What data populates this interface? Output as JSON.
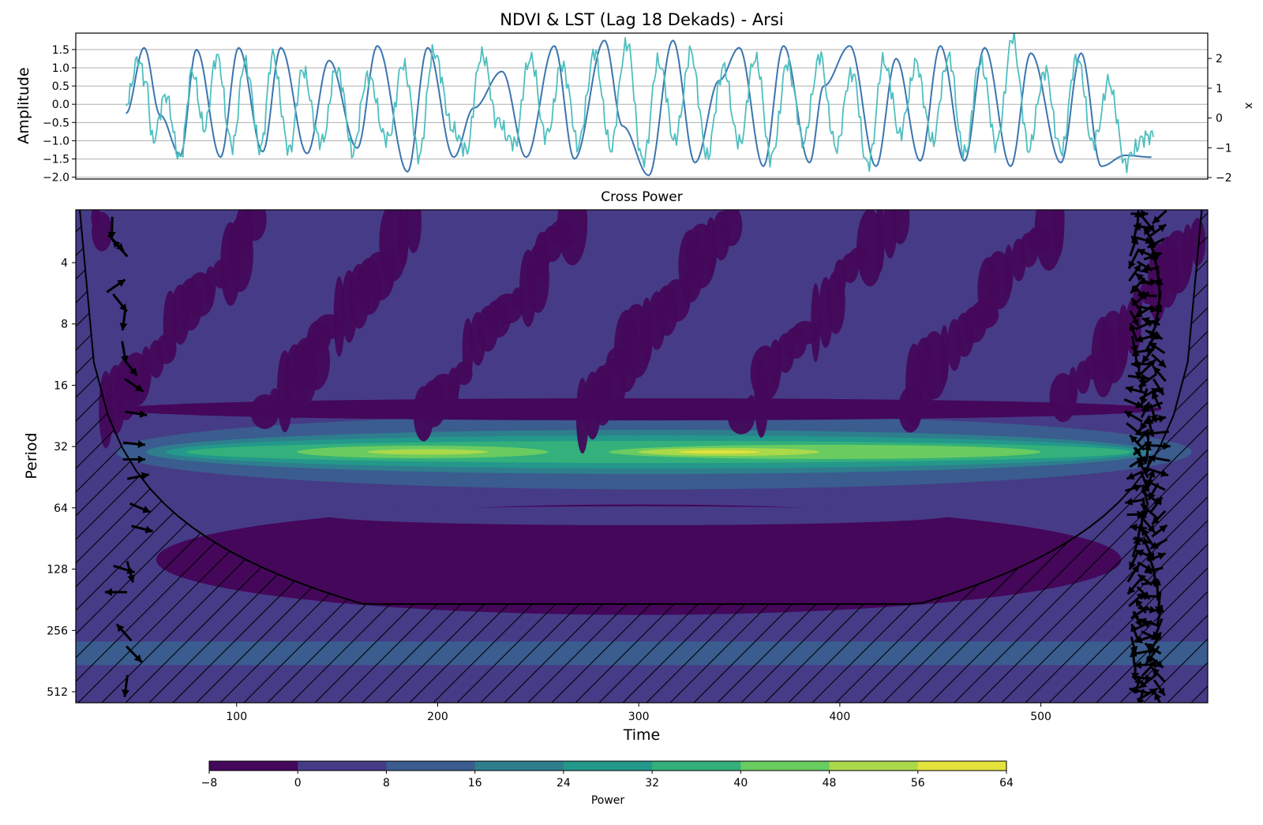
{
  "chart_data": [
    {
      "type": "line",
      "title": "NDVI & LST (Lag 18 Dekads) - Arsi",
      "ylabel": "Amplitude",
      "ylabel_right": "x",
      "ylim": [
        -2.05,
        1.95
      ],
      "ylim_right": [
        -2.05,
        2.85
      ],
      "yticks": [
        "1.5",
        "1.0",
        "0.5",
        "0.0",
        "−0.5",
        "−1.0",
        "−1.5",
        "−2.0"
      ],
      "yticks_right": [
        "2",
        "1",
        "0",
        "−1",
        "−2"
      ],
      "xlim": [
        20,
        583
      ],
      "grid": true,
      "series": [
        {
          "color": "#3b75af",
          "x": [
            45,
            54,
            62,
            72,
            80,
            92,
            101,
            113,
            122,
            135,
            146,
            160,
            170,
            185,
            195,
            208,
            218,
            232,
            244,
            258,
            268,
            283,
            292,
            305,
            317,
            328,
            340,
            350,
            362,
            372,
            385,
            392,
            405,
            418,
            428,
            440,
            450,
            462,
            472,
            485,
            495,
            510,
            520,
            530,
            542,
            555
          ],
          "y": [
            -0.25,
            1.55,
            -0.3,
            -1.4,
            1.5,
            -1.45,
            1.55,
            -1.3,
            1.55,
            -1.35,
            1.2,
            -1.2,
            1.6,
            -1.85,
            1.55,
            -1.45,
            -0.1,
            0.9,
            -1.45,
            1.6,
            -1.5,
            1.75,
            -0.6,
            -1.95,
            1.75,
            -1.6,
            0.65,
            1.55,
            -1.7,
            1.6,
            -1.6,
            0.5,
            1.6,
            -1.7,
            1.25,
            -1.55,
            1.6,
            -1.55,
            1.55,
            -1.7,
            1.4,
            -1.6,
            1.4,
            -1.7,
            -1.4,
            -1.45
          ]
        },
        {
          "color": "#4fbfbf",
          "x": [
            45,
            51,
            55,
            58,
            65,
            72,
            78,
            84,
            90,
            98,
            104,
            112,
            118,
            126,
            133,
            142,
            150,
            158,
            165,
            175,
            183,
            191,
            198,
            207,
            214,
            222,
            230,
            238,
            246,
            254,
            262,
            270,
            278,
            286,
            294,
            302,
            310,
            318,
            326,
            334,
            342,
            350,
            358,
            366,
            374,
            382,
            390,
            398,
            406,
            414,
            422,
            430,
            438,
            446,
            454,
            462,
            470,
            478,
            486,
            494,
            502,
            510,
            518,
            526,
            534,
            542,
            550,
            556
          ],
          "y": [
            0.05,
            1.3,
            0.6,
            -0.95,
            0.2,
            -1.55,
            0.9,
            -0.6,
            1.3,
            -1.2,
            1.2,
            -1.2,
            1.3,
            -1.25,
            0.9,
            -1.1,
            1.0,
            -1.3,
            0.8,
            -1.0,
            1.1,
            -1.4,
            1.5,
            -0.6,
            -1.3,
            1.4,
            -0.5,
            -1.1,
            1.3,
            -0.9,
            1.1,
            -1.1,
            1.4,
            -1.2,
            1.7,
            -1.6,
            1.2,
            -1.0,
            1.4,
            -1.4,
            1.0,
            -1.1,
            1.3,
            -1.5,
            1.1,
            -1.0,
            1.3,
            -1.2,
            0.9,
            -1.7,
            1.2,
            -0.8,
            1.1,
            -1.0,
            1.3,
            -1.4,
            1.2,
            -1.1,
            1.8,
            -1.2,
            0.9,
            -1.3,
            1.3,
            -1.1,
            0.6,
            -1.6,
            -1.0,
            -0.9
          ]
        }
      ]
    },
    {
      "type": "heatmap",
      "title": "Cross Power",
      "xlabel": "Time",
      "ylabel": "Period",
      "xlim": [
        20,
        583
      ],
      "ylim_period": [
        2.2,
        580
      ],
      "log_base": 2,
      "xticks": [
        100,
        200,
        300,
        400,
        500
      ],
      "yticks": [
        4,
        8,
        16,
        32,
        64,
        128,
        256,
        512
      ],
      "colorbar": {
        "label": "Power",
        "levels": [
          -8,
          0,
          8,
          16,
          24,
          32,
          40,
          48,
          56,
          64
        ],
        "tick_labels": [
          "−8",
          "0",
          "8",
          "16",
          "24",
          "32",
          "40",
          "48",
          "56",
          "64"
        ],
        "colors": [
          "#44075a",
          "#463b87",
          "#3a5c8e",
          "#2e7e8e",
          "#23988b",
          "#33b07b",
          "#6acb61",
          "#aad94a",
          "#e4e23d"
        ],
        "placement": "bottom"
      },
      "ridge_period": 34,
      "peak_time": 335,
      "peak_power": 60,
      "coi": {
        "edge_left": 22,
        "edge_right": 580,
        "center": 302,
        "max_period": 190
      }
    }
  ]
}
